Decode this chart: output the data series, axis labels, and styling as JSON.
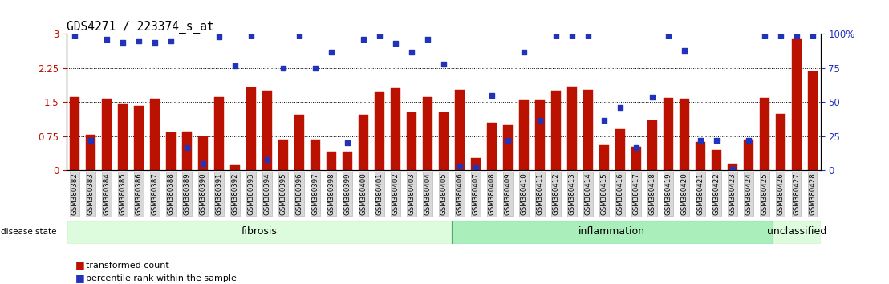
{
  "title": "GDS4271 / 223374_s_at",
  "samples": [
    "GSM380382",
    "GSM380383",
    "GSM380384",
    "GSM380385",
    "GSM380386",
    "GSM380387",
    "GSM380388",
    "GSM380389",
    "GSM380390",
    "GSM380391",
    "GSM380392",
    "GSM380393",
    "GSM380394",
    "GSM380395",
    "GSM380396",
    "GSM380397",
    "GSM380398",
    "GSM380399",
    "GSM380400",
    "GSM380401",
    "GSM380402",
    "GSM380403",
    "GSM380404",
    "GSM380405",
    "GSM380406",
    "GSM380407",
    "GSM380408",
    "GSM380409",
    "GSM380410",
    "GSM380411",
    "GSM380412",
    "GSM380413",
    "GSM380414",
    "GSM380415",
    "GSM380416",
    "GSM380417",
    "GSM380418",
    "GSM380419",
    "GSM380420",
    "GSM380421",
    "GSM380422",
    "GSM380423",
    "GSM380424",
    "GSM380425",
    "GSM380426",
    "GSM380427",
    "GSM380428"
  ],
  "bar_values": [
    1.62,
    0.78,
    1.57,
    1.46,
    1.42,
    1.57,
    0.83,
    0.85,
    0.75,
    1.62,
    0.12,
    1.82,
    1.75,
    0.68,
    1.22,
    0.68,
    0.42,
    0.42,
    1.22,
    1.72,
    1.8,
    1.28,
    1.62,
    1.28,
    1.78,
    0.28,
    1.05,
    1.0,
    1.55,
    1.55,
    1.75,
    1.85,
    1.78,
    0.55,
    0.9,
    0.52,
    1.1,
    1.6,
    1.58,
    0.62,
    0.45,
    0.15,
    0.68,
    1.6,
    1.25,
    2.9,
    2.18
  ],
  "blue_values_pct": [
    99,
    22,
    96,
    94,
    95,
    94,
    95,
    17,
    5,
    98,
    77,
    99,
    8,
    75,
    99,
    75,
    87,
    20,
    96,
    99,
    93,
    87,
    96,
    78,
    3,
    2,
    55,
    22,
    87,
    37,
    99,
    99,
    99,
    37,
    46,
    17,
    54,
    99,
    88,
    22,
    22,
    1,
    22,
    99,
    99,
    99,
    99
  ],
  "groups": [
    {
      "label": "fibrosis",
      "start": 0,
      "end": 23,
      "color": "#ddfcdd",
      "edge": "#88cc88"
    },
    {
      "label": "inflammation",
      "start": 24,
      "end": 43,
      "color": "#aaeebb",
      "edge": "#55aa66"
    },
    {
      "label": "unclassified",
      "start": 44,
      "end": 46,
      "color": "#ddfcdd",
      "edge": "#88cc88"
    }
  ],
  "bar_color": "#bb1100",
  "dot_color": "#2233bb",
  "ylim_left": [
    0,
    3
  ],
  "ylim_right": [
    0,
    100
  ],
  "yticks_left": [
    0,
    0.75,
    1.5,
    2.25,
    3
  ],
  "yticks_right": [
    0,
    25,
    50,
    75,
    100
  ],
  "ytick_labels_left": [
    "0",
    "0.75",
    "1.5",
    "2.25",
    "3"
  ],
  "ytick_labels_right": [
    "0",
    "25",
    "50",
    "75",
    "100%"
  ],
  "hlines": [
    0.75,
    1.5,
    2.25
  ],
  "tick_label_size": 6.2,
  "group_label_size": 9,
  "disease_state_label": "disease state",
  "legend_items": [
    {
      "label": "transformed count",
      "color": "#bb1100"
    },
    {
      "label": "percentile rank within the sample",
      "color": "#2233bb"
    }
  ]
}
